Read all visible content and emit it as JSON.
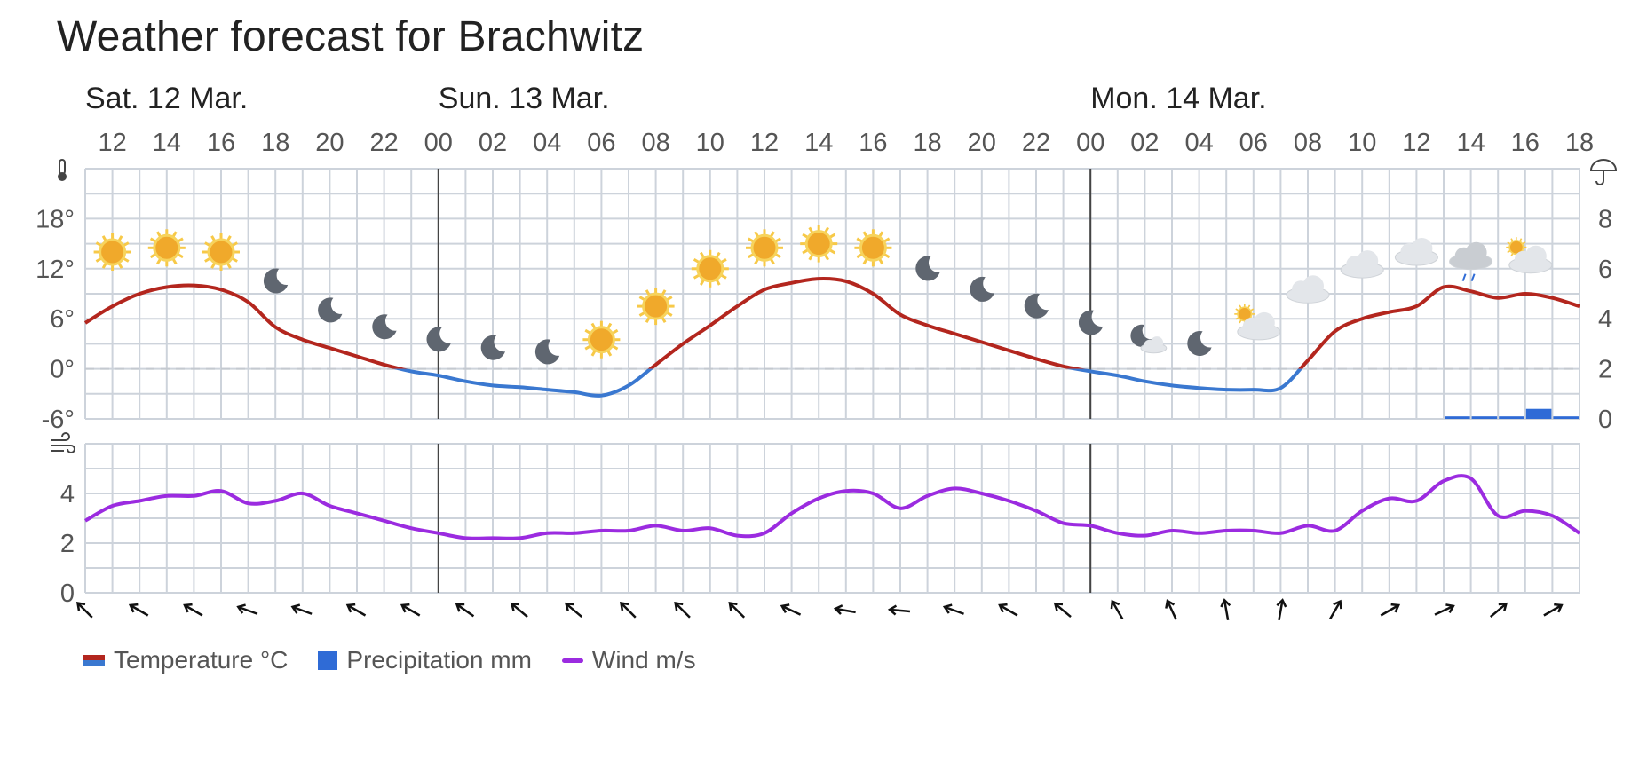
{
  "title": "Weather forecast for Brachwitz",
  "legend": {
    "temperature": "Temperature °C",
    "precipitation": "Precipitation mm",
    "wind": "Wind m/s"
  },
  "colors": {
    "temp_warm": "#b3261e",
    "temp_cold": "#3a78d0",
    "precip": "#2f6bd6",
    "wind": "#9b2be0",
    "grid": "#cdd3db",
    "day_sep": "#444444",
    "text": "#555555"
  },
  "icons": {
    "temp_axis": "thermometer-icon",
    "precip_axis": "umbrella-icon",
    "wind_axis": "wind-icon"
  },
  "chart_data": [
    {
      "type": "line",
      "name": "temperature-precipitation",
      "day_labels": [
        {
          "label": "Sat. 12 Mar.",
          "hour": 11
        },
        {
          "label": "Sun. 13 Mar.",
          "hour": 24
        },
        {
          "label": "Mon. 14 Mar.",
          "hour": 48
        }
      ],
      "x_tick_labels": [
        "12",
        "14",
        "16",
        "18",
        "20",
        "22",
        "00",
        "02",
        "04",
        "06",
        "08",
        "10",
        "12",
        "14",
        "16",
        "18",
        "20",
        "22",
        "00",
        "02",
        "04",
        "06",
        "08",
        "10",
        "12",
        "14",
        "16",
        "18"
      ],
      "y_left_ticks": [
        "18°",
        "12°",
        "6°",
        "0°",
        "-6°"
      ],
      "y_left_range": [
        -6,
        24
      ],
      "y_right_ticks": [
        "8",
        "6",
        "4",
        "2",
        "0"
      ],
      "y_right_range": [
        0,
        10
      ],
      "x_range_hours": [
        11,
        66
      ],
      "temperature": {
        "hours": [
          11,
          12,
          13,
          14,
          15,
          16,
          17,
          18,
          19,
          20,
          21,
          22,
          23,
          24,
          25,
          26,
          27,
          28,
          29,
          30,
          31,
          32,
          33,
          34,
          35,
          36,
          37,
          38,
          39,
          40,
          41,
          42,
          43,
          44,
          45,
          46,
          47,
          48,
          49,
          50,
          51,
          52,
          53,
          54,
          55,
          56,
          57,
          58,
          59,
          60,
          61,
          62,
          63,
          64,
          65,
          66
        ],
        "values": [
          5.5,
          7.5,
          9,
          9.8,
          10,
          9.5,
          8,
          5,
          3.5,
          2.5,
          1.5,
          0.5,
          -0.3,
          -0.8,
          -1.5,
          -2,
          -2.2,
          -2.5,
          -2.8,
          -3.2,
          -2,
          0.5,
          3,
          5.2,
          7.5,
          9.5,
          10.3,
          10.8,
          10.5,
          9,
          6.5,
          5.2,
          4.2,
          3.2,
          2.2,
          1.2,
          0.3,
          -0.3,
          -0.8,
          -1.5,
          -2,
          -2.3,
          -2.5,
          -2.5,
          -2.3,
          1,
          4.5,
          6,
          6.8,
          7.5,
          9.8,
          9.3,
          8.5,
          9,
          8.5,
          7.5
        ]
      },
      "precipitation": {
        "hours": [
          61,
          62,
          63,
          64,
          65
        ],
        "values": [
          0.1,
          0.1,
          0.1,
          0.4,
          0.1
        ]
      },
      "weather_symbols": [
        {
          "hour": 12,
          "icon": "sun-icon",
          "temp": 14
        },
        {
          "hour": 14,
          "icon": "sun-icon",
          "temp": 14.5
        },
        {
          "hour": 16,
          "icon": "sun-icon",
          "temp": 14
        },
        {
          "hour": 18,
          "icon": "moon-icon",
          "temp": 10.5
        },
        {
          "hour": 20,
          "icon": "moon-icon",
          "temp": 7
        },
        {
          "hour": 22,
          "icon": "moon-icon",
          "temp": 5
        },
        {
          "hour": 24,
          "icon": "moon-icon",
          "temp": 3.5
        },
        {
          "hour": 26,
          "icon": "moon-icon",
          "temp": 2.5
        },
        {
          "hour": 28,
          "icon": "moon-icon",
          "temp": 2
        },
        {
          "hour": 30,
          "icon": "sun-icon",
          "temp": 3.5
        },
        {
          "hour": 32,
          "icon": "sun-icon",
          "temp": 7.5
        },
        {
          "hour": 34,
          "icon": "sun-icon",
          "temp": 12
        },
        {
          "hour": 36,
          "icon": "sun-icon",
          "temp": 14.5
        },
        {
          "hour": 38,
          "icon": "sun-icon",
          "temp": 15
        },
        {
          "hour": 40,
          "icon": "sun-icon",
          "temp": 14.5
        },
        {
          "hour": 42,
          "icon": "moon-icon",
          "temp": 12
        },
        {
          "hour": 44,
          "icon": "moon-icon",
          "temp": 9.5
        },
        {
          "hour": 46,
          "icon": "moon-icon",
          "temp": 7.5
        },
        {
          "hour": 48,
          "icon": "moon-icon",
          "temp": 5.5
        },
        {
          "hour": 50,
          "icon": "moon-cloud-icon",
          "temp": 3.5
        },
        {
          "hour": 52,
          "icon": "moon-icon",
          "temp": 3
        },
        {
          "hour": 54,
          "icon": "sun-cloud-icon",
          "temp": 5.5
        },
        {
          "hour": 56,
          "icon": "cloud-icon",
          "temp": 9.5
        },
        {
          "hour": 58,
          "icon": "cloud-icon",
          "temp": 12.5
        },
        {
          "hour": 60,
          "icon": "cloud-icon",
          "temp": 14
        },
        {
          "hour": 62,
          "icon": "rain-cloud-icon",
          "temp": 13.5
        },
        {
          "hour": 64,
          "icon": "sun-cloud-icon",
          "temp": 13.5
        }
      ]
    },
    {
      "type": "line",
      "name": "wind",
      "y_ticks": [
        "4",
        "2",
        "0"
      ],
      "y_range": [
        0,
        6
      ],
      "wind": {
        "hours": [
          11,
          12,
          13,
          14,
          15,
          16,
          17,
          18,
          19,
          20,
          21,
          22,
          23,
          24,
          25,
          26,
          27,
          28,
          29,
          30,
          31,
          32,
          33,
          34,
          35,
          36,
          37,
          38,
          39,
          40,
          41,
          42,
          43,
          44,
          45,
          46,
          47,
          48,
          49,
          50,
          51,
          52,
          53,
          54,
          55,
          56,
          57,
          58,
          59,
          60,
          61,
          62,
          63,
          64,
          65,
          66
        ],
        "values": [
          2.9,
          3.5,
          3.7,
          3.9,
          3.9,
          4.1,
          3.6,
          3.7,
          4.0,
          3.5,
          3.2,
          2.9,
          2.6,
          2.4,
          2.2,
          2.2,
          2.2,
          2.4,
          2.4,
          2.5,
          2.5,
          2.7,
          2.5,
          2.6,
          2.3,
          2.4,
          3.2,
          3.8,
          4.1,
          4.0,
          3.4,
          3.9,
          4.2,
          4.0,
          3.7,
          3.3,
          2.8,
          2.7,
          2.4,
          2.3,
          2.5,
          2.4,
          2.5,
          2.5,
          2.4,
          2.7,
          2.5,
          3.3,
          3.8,
          3.7,
          4.5,
          4.6,
          3.1,
          3.3,
          3.1,
          2.4
        ]
      },
      "wind_direction": {
        "hours": [
          11,
          13,
          15,
          17,
          19,
          21,
          23,
          25,
          27,
          29,
          31,
          33,
          35,
          37,
          39,
          41,
          43,
          45,
          47,
          49,
          51,
          53,
          55,
          57,
          59,
          61,
          63,
          65
        ],
        "arrow_angle_deg": [
          -45,
          -60,
          -60,
          -70,
          -70,
          -60,
          -60,
          -55,
          -50,
          -50,
          -45,
          -45,
          -45,
          -65,
          -80,
          -85,
          -70,
          -60,
          -50,
          -30,
          -25,
          -10,
          10,
          30,
          60,
          65,
          50,
          60
        ]
      }
    }
  ]
}
